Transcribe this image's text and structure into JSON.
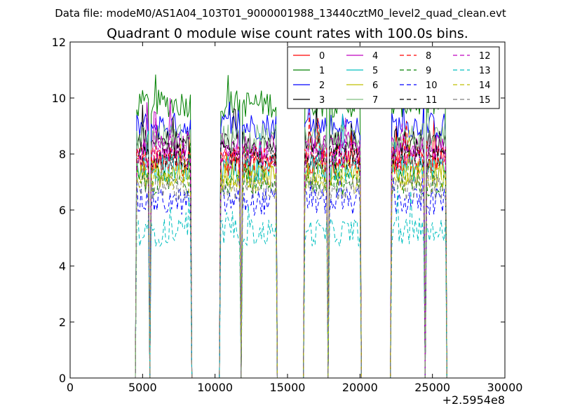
{
  "page": {
    "suptitle": "Data file: modeM0/AS1A04_103T01_9000001988_13440cztM0_level2_quad_clean.evt"
  },
  "chart_data": {
    "type": "line",
    "title": "Quadrant 0 module wise count rates with 100.0s bins.",
    "xlabel": "",
    "ylabel": "",
    "x_offset_label": "+2.5954e8",
    "xlim": [
      0,
      30000
    ],
    "ylim": [
      0,
      12
    ],
    "xticks": [
      0,
      5000,
      10000,
      15000,
      20000,
      25000,
      30000
    ],
    "yticks": [
      0,
      2,
      4,
      6,
      8,
      10,
      12
    ],
    "grid": false,
    "legend_position": "top-right",
    "legend_columns": 4,
    "bin_seconds": 100.0,
    "segments": [
      {
        "x_start": 4600,
        "x_end": 8300,
        "gaps": [
          5500
        ]
      },
      {
        "x_start": 10400,
        "x_end": 14200,
        "gaps": [
          11800
        ]
      },
      {
        "x_start": 16200,
        "x_end": 20000,
        "gaps": [
          17800
        ]
      },
      {
        "x_start": 22200,
        "x_end": 25900,
        "gaps": [
          24500
        ]
      }
    ],
    "series": [
      {
        "name": "0",
        "color": "#ff0000",
        "dash": "solid",
        "level": 7.7
      },
      {
        "name": "1",
        "color": "#008000",
        "dash": "solid",
        "level": 9.8
      },
      {
        "name": "2",
        "color": "#0000ff",
        "dash": "solid",
        "level": 9.0
      },
      {
        "name": "3",
        "color": "#000000",
        "dash": "solid",
        "level": 8.4
      },
      {
        "name": "4",
        "color": "#bf00bf",
        "dash": "solid",
        "level": 8.3
      },
      {
        "name": "5",
        "color": "#00bfbf",
        "dash": "solid",
        "level": 7.5
      },
      {
        "name": "6",
        "color": "#bfbf00",
        "dash": "solid",
        "level": 7.3
      },
      {
        "name": "7",
        "color": "#7fbf7f",
        "dash": "solid",
        "level": 8.6
      },
      {
        "name": "8",
        "color": "#ff0000",
        "dash": "dashed",
        "level": 7.8
      },
      {
        "name": "9",
        "color": "#008000",
        "dash": "dashed",
        "level": 7.0
      },
      {
        "name": "10",
        "color": "#0000ff",
        "dash": "dashed",
        "level": 6.3
      },
      {
        "name": "11",
        "color": "#000000",
        "dash": "dashed",
        "level": 7.9
      },
      {
        "name": "12",
        "color": "#bf00bf",
        "dash": "dashed",
        "level": 8.0
      },
      {
        "name": "13",
        "color": "#00bfbf",
        "dash": "dashed",
        "level": 5.2
      },
      {
        "name": "14",
        "color": "#bfbf00",
        "dash": "dashed",
        "level": 7.1
      },
      {
        "name": "15",
        "color": "#808080",
        "dash": "dashed",
        "level": 6.8
      }
    ]
  }
}
